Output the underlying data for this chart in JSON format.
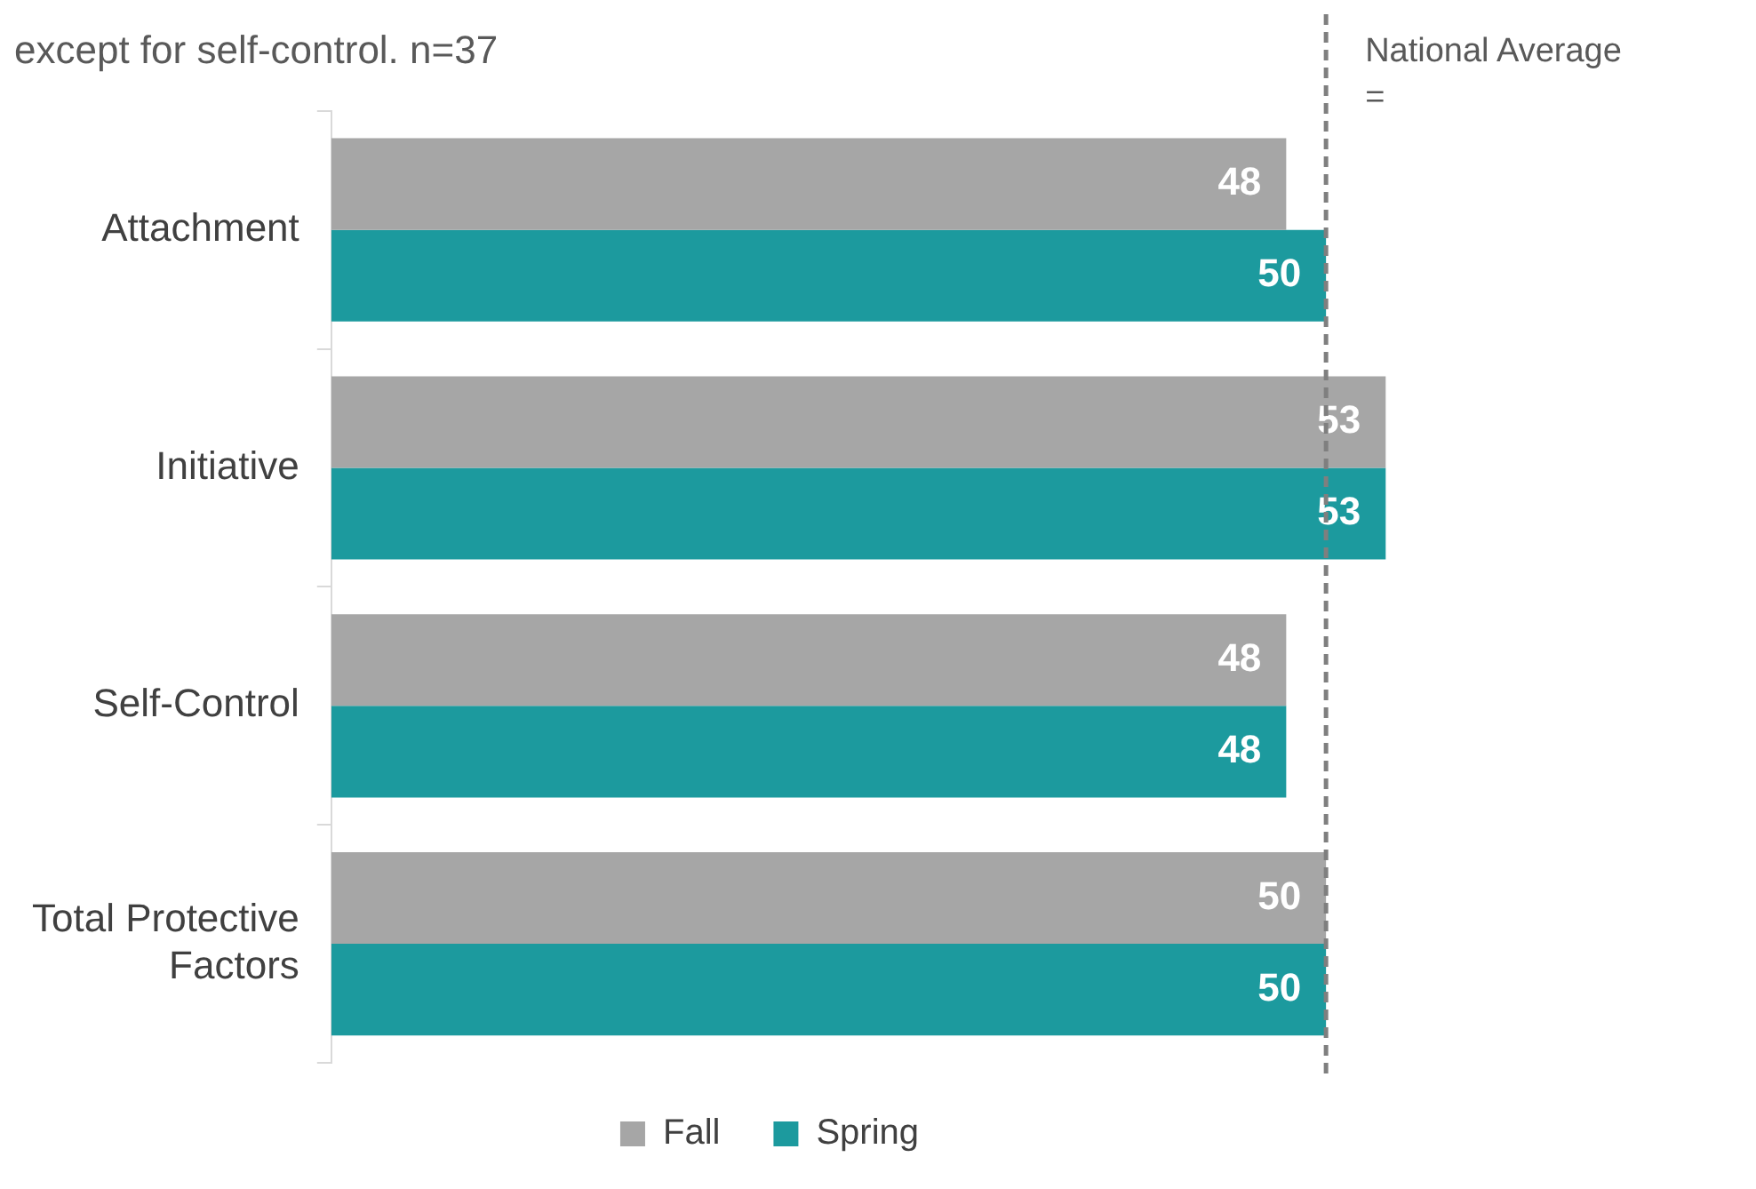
{
  "chart_data": {
    "type": "bar",
    "orientation": "horizontal",
    "title": "except for self-control. n=37",
    "categories": [
      "Attachment",
      "Initiative",
      "Self-Control",
      "Total Protective Factors"
    ],
    "series": [
      {
        "name": "Fall",
        "color": "#a6a6a6",
        "values": [
          48,
          53,
          48,
          50
        ]
      },
      {
        "name": "Spring",
        "color": "#1c9a9e",
        "values": [
          50,
          53,
          48,
          50
        ]
      }
    ],
    "data_labels": true,
    "tick_labels": "y",
    "grid": false,
    "legend": "bottom",
    "ref_lines": [
      {
        "axis": "x",
        "value": 50,
        "label": "National Average =",
        "color": "#7f7f7f",
        "line_style": "dashed"
      }
    ]
  }
}
